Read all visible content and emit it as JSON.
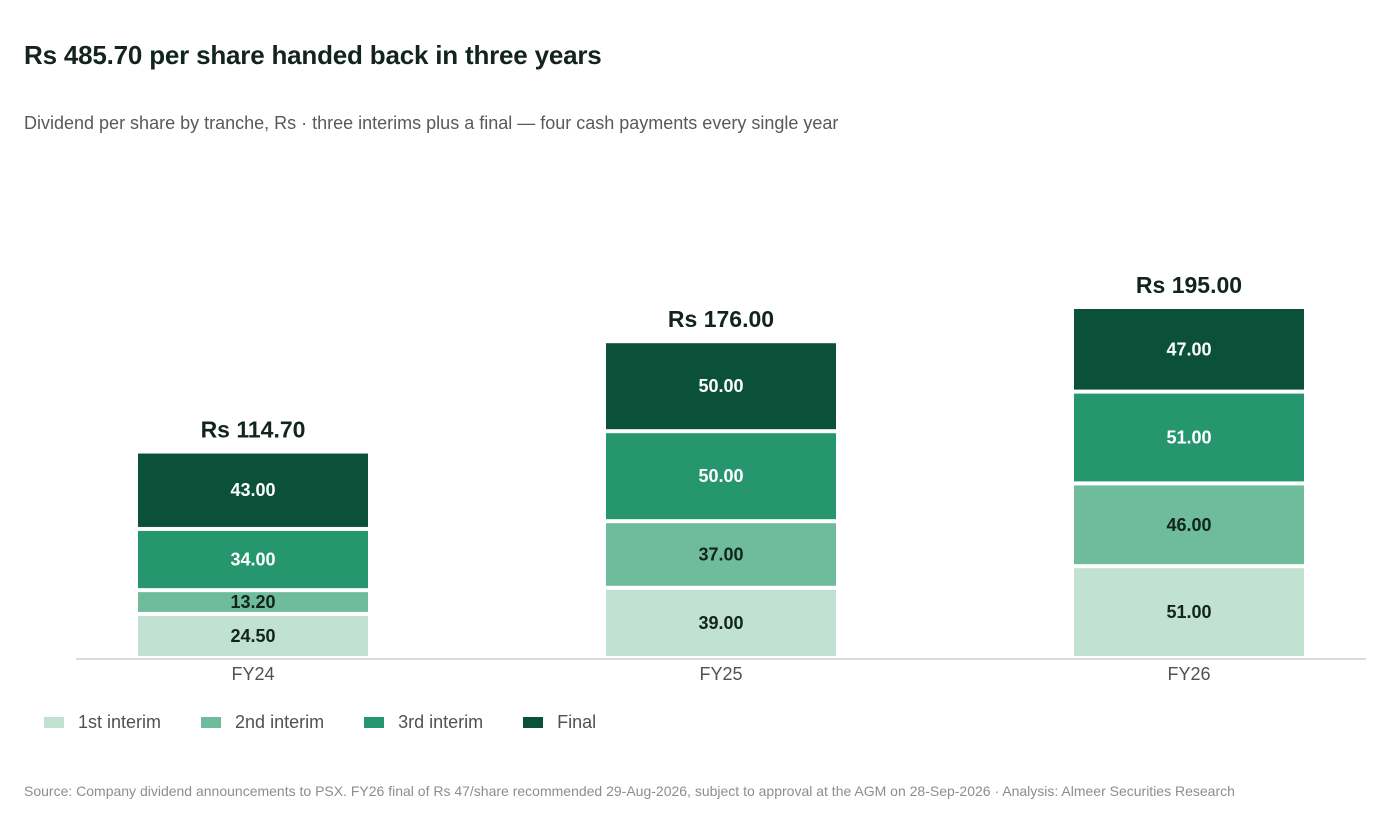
{
  "header": {
    "title": "Rs 485.70 per share handed back in three years",
    "subtitle": "Dividend per share by tranche, Rs  ·  three interims plus a final — four cash payments every single year"
  },
  "chart_data": {
    "type": "bar",
    "stacked": true,
    "categories": [
      "FY24",
      "FY25",
      "FY26"
    ],
    "series": [
      {
        "name": "1st interim",
        "values": [
          24.5,
          39.0,
          51.0
        ],
        "color": "#c1e1d2",
        "label_color": "#12241d"
      },
      {
        "name": "2nd interim",
        "values": [
          13.2,
          37.0,
          46.0
        ],
        "color": "#6fbc9c",
        "label_color": "#12241d"
      },
      {
        "name": "3rd interim",
        "values": [
          34.0,
          50.0,
          51.0
        ],
        "color": "#26966f",
        "label_color": "#ffffff"
      },
      {
        "name": "Final",
        "values": [
          43.0,
          50.0,
          47.0
        ],
        "color": "#0b5139",
        "label_color": "#ffffff"
      }
    ],
    "value_labels": [
      [
        "24.50",
        "39.00",
        "51.00"
      ],
      [
        "13.20",
        "37.00",
        "46.00"
      ],
      [
        "34.00",
        "50.00",
        "51.00"
      ],
      [
        "43.00",
        "50.00",
        "47.00"
      ]
    ],
    "totals": [
      114.7,
      176.0,
      195.0
    ],
    "total_labels": [
      "Rs 114.70",
      "Rs 176.00",
      "Rs 195.00"
    ],
    "xlabel": "",
    "ylabel": "",
    "ylim": [
      0,
      195
    ],
    "grid": false,
    "legend_position": "bottom-left"
  },
  "footer": {
    "source": "Source: Company dividend announcements to PSX. FY26 final of Rs 47/share recommended 29-Aug-2026, subject to approval at the AGM on 28-Sep-2026  ·  Analysis: Almeer Securities Research"
  }
}
